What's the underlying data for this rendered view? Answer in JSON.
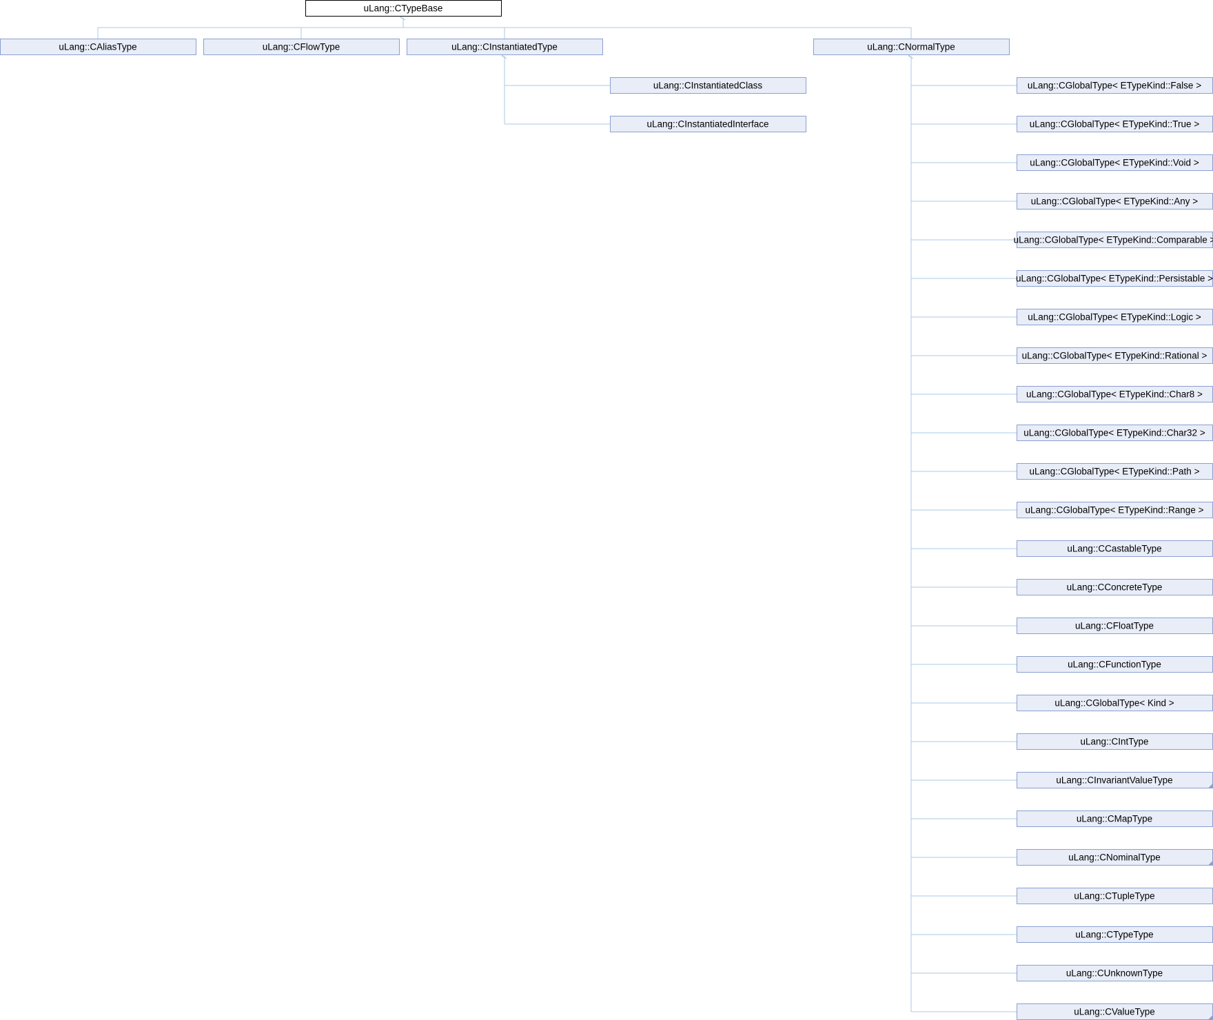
{
  "colors": {
    "node_fill": "#e8edf7",
    "node_stroke": "#8a9fd0",
    "root_fill": "#ffffff",
    "root_stroke": "#000000",
    "edge": "#a8c8e4"
  },
  "root": {
    "id": "ctypebase",
    "label": "uLang::CTypeBase"
  },
  "level1": [
    {
      "id": "caliastype",
      "label": "uLang::CAliasType"
    },
    {
      "id": "cflowtype",
      "label": "uLang::CFlowType"
    },
    {
      "id": "cinstantiatedtype",
      "label": "uLang::CInstantiatedType"
    },
    {
      "id": "cnormaltype",
      "label": "uLang::CNormalType"
    }
  ],
  "instantiated_children": [
    {
      "id": "cinstantiatedclass",
      "label": "uLang::CInstantiatedClass"
    },
    {
      "id": "cinstantiatedinterface",
      "label": "uLang::CInstantiatedInterface"
    }
  ],
  "normal_children": [
    {
      "id": "cglobaltype-false",
      "label": "uLang::CGlobalType< ETypeKind::False >"
    },
    {
      "id": "cglobaltype-true",
      "label": "uLang::CGlobalType< ETypeKind::True >"
    },
    {
      "id": "cglobaltype-void",
      "label": "uLang::CGlobalType< ETypeKind::Void >"
    },
    {
      "id": "cglobaltype-any",
      "label": "uLang::CGlobalType< ETypeKind::Any >"
    },
    {
      "id": "cglobaltype-comparable",
      "label": "uLang::CGlobalType< ETypeKind::Comparable >"
    },
    {
      "id": "cglobaltype-persistable",
      "label": "uLang::CGlobalType< ETypeKind::Persistable >"
    },
    {
      "id": "cglobaltype-logic",
      "label": "uLang::CGlobalType< ETypeKind::Logic >"
    },
    {
      "id": "cglobaltype-rational",
      "label": "uLang::CGlobalType< ETypeKind::Rational >"
    },
    {
      "id": "cglobaltype-char8",
      "label": "uLang::CGlobalType< ETypeKind::Char8 >"
    },
    {
      "id": "cglobaltype-char32",
      "label": "uLang::CGlobalType< ETypeKind::Char32 >"
    },
    {
      "id": "cglobaltype-path",
      "label": "uLang::CGlobalType< ETypeKind::Path >"
    },
    {
      "id": "cglobaltype-range",
      "label": "uLang::CGlobalType< ETypeKind::Range >"
    },
    {
      "id": "ccastabletype",
      "label": "uLang::CCastableType"
    },
    {
      "id": "cconcretetype",
      "label": "uLang::CConcreteType"
    },
    {
      "id": "cfloattype",
      "label": "uLang::CFloatType"
    },
    {
      "id": "cfunctiontype",
      "label": "uLang::CFunctionType"
    },
    {
      "id": "cglobaltype-kind",
      "label": "uLang::CGlobalType< Kind >"
    },
    {
      "id": "cinttype",
      "label": "uLang::CIntType"
    },
    {
      "id": "cinvariantvaluetype",
      "label": "uLang::CInvariantValueType",
      "has_more": true
    },
    {
      "id": "cmaptype",
      "label": "uLang::CMapType"
    },
    {
      "id": "cnominaltype",
      "label": "uLang::CNominalType",
      "has_more": true
    },
    {
      "id": "ctupletype",
      "label": "uLang::CTupleType"
    },
    {
      "id": "ctypetype",
      "label": "uLang::CTypeType"
    },
    {
      "id": "cunknowntype",
      "label": "uLang::CUnknownType"
    },
    {
      "id": "cvaluetype",
      "label": "uLang::CValueType",
      "has_more": true
    }
  ]
}
